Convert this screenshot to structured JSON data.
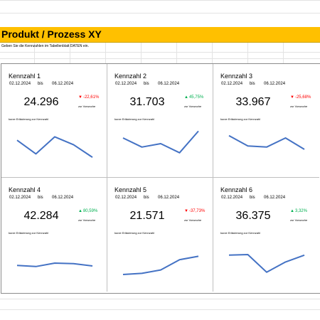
{
  "header": {
    "title": "Produkt / Prozess XY",
    "instruction": "Geben Sie die Kennzahlen im Tabellenblatt DATEN ein."
  },
  "colors": {
    "title_bar": "#ffc000",
    "line": "#4472c4",
    "down": "#ff0000",
    "up": "#00b050"
  },
  "kpis": [
    {
      "name": "Kennzahl 1",
      "date_from": "02.12.2024",
      "bis": "bis",
      "date_to": "06.12.2024",
      "value": "24.296",
      "change": "-22,61%",
      "direction": "down",
      "arrow": "▼",
      "compare": "zur Vorwoche",
      "note": "kurze Erläuterung zur Kennzahl",
      "sparkline": [
        58,
        46,
        61,
        54,
        43
      ]
    },
    {
      "name": "Kennzahl 2",
      "date_from": "02.12.2024",
      "bis": "bis",
      "date_to": "06.12.2024",
      "value": "31.703",
      "change": "45,75%",
      "direction": "up",
      "arrow": "▲",
      "compare": "zur Vorwoche",
      "note": "kurze Erläuterung zur Kennzahl",
      "sparkline": [
        60,
        52,
        55,
        47,
        66
      ]
    },
    {
      "name": "Kennzahl 3",
      "date_from": "02.12.2024",
      "bis": "bis",
      "date_to": "06.12.2024",
      "value": "33.967",
      "change": "-25,68%",
      "direction": "down",
      "arrow": "▼",
      "compare": "zur Vorwoche",
      "note": "kurze Erläuterung zur Kennzahl",
      "sparkline": [
        62,
        53,
        52,
        60,
        50
      ]
    },
    {
      "name": "Kennzahl 4",
      "date_from": "02.12.2024",
      "bis": "bis",
      "date_to": "06.12.2024",
      "value": "42.284",
      "change": "80,59%",
      "direction": "up",
      "arrow": "▲",
      "compare": "zur Vorwoche",
      "note": "kurze Erläuterung zur Kennzahl",
      "sparkline": [
        48,
        47,
        50,
        49.5,
        47.5
      ]
    },
    {
      "name": "Kennzahl 5",
      "date_from": "02.12.2024",
      "bis": "bis",
      "date_to": "06.12.2024",
      "value": "21.571",
      "change": "-37,73%",
      "direction": "down",
      "arrow": "▼",
      "compare": "zur Vorwoche",
      "note": "kurze Erläuterung zur Kennzahl",
      "sparkline": [
        40,
        41,
        44,
        53,
        56
      ]
    },
    {
      "name": "Kennzahl 6",
      "date_from": "02.12.2024",
      "bis": "bis",
      "date_to": "06.12.2024",
      "value": "36.375",
      "change": "3,32%",
      "direction": "up",
      "arrow": "▲",
      "compare": "zur Vorwoche",
      "note": "kurze Erläuterung zur Kennzahl",
      "sparkline": [
        57,
        57.5,
        42,
        51,
        57
      ]
    }
  ]
}
